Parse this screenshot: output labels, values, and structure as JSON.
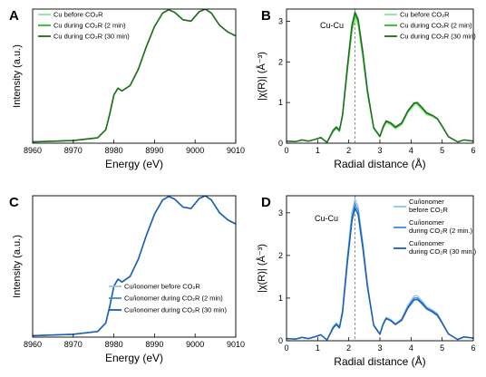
{
  "colors": {
    "light_green": "#8ee68e",
    "mid_green": "#2eb82e",
    "dark_green": "#1e6e1e",
    "light_blue": "#8fc3ec",
    "mid_blue": "#3a8fd8",
    "dark_blue": "#1a5fb4",
    "guide": "#777777"
  },
  "chart_data": [
    {
      "panel": "A",
      "type": "line",
      "xlabel": "Energy (eV)",
      "ylabel": "Intensity (a.u.)",
      "xlim": [
        8960,
        9010
      ],
      "xticks": [
        8960,
        8970,
        8980,
        8990,
        9000,
        9010
      ],
      "ylim": [
        0,
        1
      ],
      "show_yticks": false,
      "legend": {
        "position": "top-left"
      },
      "series": [
        {
          "name": "Cu before CO₂R",
          "color_key": "light_green",
          "width": 1.2,
          "x": [
            8960,
            8970,
            8976,
            8978,
            8979,
            8980,
            8981,
            8982,
            8984,
            8986,
            8988,
            8990,
            8992,
            8993.5,
            8995,
            8997,
            8999,
            9001,
            9002.5,
            9004,
            9006,
            9008,
            9010
          ],
          "y": [
            0.01,
            0.02,
            0.04,
            0.1,
            0.22,
            0.36,
            0.41,
            0.39,
            0.43,
            0.55,
            0.72,
            0.87,
            0.97,
            0.995,
            0.975,
            0.92,
            0.91,
            0.98,
            1.0,
            0.97,
            0.88,
            0.83,
            0.8
          ]
        },
        {
          "name": "Cu during CO₂R (2 min)",
          "color_key": "mid_green",
          "width": 1.4,
          "x": [
            8960,
            8970,
            8976,
            8978,
            8979,
            8980,
            8981,
            8982,
            8984,
            8986,
            8988,
            8990,
            8992,
            8993.5,
            8995,
            8997,
            8999,
            9001,
            9002.5,
            9004,
            9006,
            9008,
            9010
          ],
          "y": [
            0.01,
            0.02,
            0.04,
            0.1,
            0.22,
            0.36,
            0.41,
            0.39,
            0.43,
            0.55,
            0.72,
            0.87,
            0.97,
            0.995,
            0.975,
            0.92,
            0.91,
            0.98,
            1.0,
            0.97,
            0.88,
            0.83,
            0.8
          ]
        },
        {
          "name": "Cu during CO₂R (30 min)",
          "color_key": "dark_green",
          "width": 1.6,
          "x": [
            8960,
            8970,
            8976,
            8978,
            8979,
            8980,
            8981,
            8982,
            8984,
            8986,
            8988,
            8990,
            8992,
            8993.5,
            8995,
            8997,
            8999,
            9001,
            9002.5,
            9004,
            9006,
            9008,
            9010
          ],
          "y": [
            0.01,
            0.02,
            0.04,
            0.1,
            0.22,
            0.36,
            0.41,
            0.39,
            0.43,
            0.55,
            0.72,
            0.87,
            0.97,
            0.995,
            0.975,
            0.92,
            0.91,
            0.98,
            1.0,
            0.97,
            0.88,
            0.83,
            0.8
          ]
        }
      ]
    },
    {
      "panel": "B",
      "type": "line",
      "xlabel": "Radial distance (Å)",
      "ylabel": "|χ(R)| (Å⁻³)",
      "xlim": [
        0,
        6
      ],
      "xticks": [
        0,
        1,
        2,
        3,
        4,
        5,
        6
      ],
      "ylim": [
        0,
        3.3
      ],
      "yticks": [
        0,
        1,
        2,
        3
      ],
      "annotation": "Cu-Cu",
      "guide_x": 2.2,
      "legend": {
        "position": "top-right"
      },
      "series": [
        {
          "name": "Cu before CO₂R",
          "color_key": "light_green",
          "width": 1.2,
          "x": [
            0,
            0.3,
            0.5,
            0.7,
            0.9,
            1.1,
            1.3,
            1.5,
            1.6,
            1.7,
            1.8,
            1.95,
            2.1,
            2.2,
            2.3,
            2.45,
            2.6,
            2.8,
            3.0,
            3.1,
            3.2,
            3.35,
            3.5,
            3.7,
            3.9,
            4.1,
            4.2,
            4.35,
            4.5,
            4.7,
            4.85,
            5.0,
            5.2,
            5.5,
            5.7,
            6.0
          ],
          "y": [
            0.05,
            0.04,
            0.08,
            0.05,
            0.09,
            0.14,
            0.02,
            0.28,
            0.35,
            0.28,
            0.65,
            1.7,
            2.7,
            3.05,
            2.9,
            2.1,
            1.2,
            0.35,
            0.15,
            0.35,
            0.5,
            0.45,
            0.35,
            0.45,
            0.75,
            0.93,
            0.94,
            0.82,
            0.7,
            0.65,
            0.58,
            0.4,
            0.15,
            0.03,
            0.08,
            0.05
          ]
        },
        {
          "name": "Cu during CO₂R (2 min)",
          "color_key": "mid_green",
          "width": 1.3,
          "x": [
            0,
            0.3,
            0.5,
            0.7,
            0.9,
            1.1,
            1.3,
            1.5,
            1.6,
            1.7,
            1.8,
            1.95,
            2.1,
            2.2,
            2.3,
            2.45,
            2.6,
            2.8,
            3.0,
            3.1,
            3.2,
            3.35,
            3.5,
            3.7,
            3.9,
            4.1,
            4.2,
            4.35,
            4.5,
            4.7,
            4.85,
            5.0,
            5.2,
            5.5,
            5.7,
            6.0
          ],
          "y": [
            0.05,
            0.04,
            0.08,
            0.05,
            0.09,
            0.14,
            0.02,
            0.3,
            0.38,
            0.3,
            0.68,
            1.78,
            2.82,
            3.15,
            2.98,
            2.18,
            1.25,
            0.37,
            0.16,
            0.38,
            0.53,
            0.48,
            0.38,
            0.48,
            0.78,
            0.97,
            0.98,
            0.86,
            0.73,
            0.67,
            0.6,
            0.42,
            0.16,
            0.03,
            0.08,
            0.05
          ]
        },
        {
          "name": "Cu during CO₂R (30 min)",
          "color_key": "dark_green",
          "width": 1.5,
          "x": [
            0,
            0.3,
            0.5,
            0.7,
            0.9,
            1.1,
            1.3,
            1.5,
            1.6,
            1.7,
            1.8,
            1.95,
            2.1,
            2.2,
            2.3,
            2.45,
            2.6,
            2.8,
            3.0,
            3.1,
            3.2,
            3.35,
            3.5,
            3.7,
            3.9,
            4.1,
            4.2,
            4.35,
            4.5,
            4.7,
            4.85,
            5.0,
            5.2,
            5.5,
            5.7,
            6.0
          ],
          "y": [
            0.05,
            0.04,
            0.08,
            0.05,
            0.09,
            0.14,
            0.02,
            0.32,
            0.4,
            0.32,
            0.7,
            1.85,
            2.9,
            3.22,
            3.05,
            2.25,
            1.3,
            0.38,
            0.17,
            0.4,
            0.55,
            0.5,
            0.4,
            0.5,
            0.8,
            0.99,
            1.0,
            0.88,
            0.75,
            0.68,
            0.6,
            0.42,
            0.16,
            0.03,
            0.08,
            0.05
          ]
        }
      ]
    },
    {
      "panel": "C",
      "type": "line",
      "xlabel": "Energy (eV)",
      "ylabel": "Intensity (a.u.)",
      "xlim": [
        8960,
        9010
      ],
      "xticks": [
        8960,
        8970,
        8980,
        8990,
        9000,
        9010
      ],
      "ylim": [
        0,
        1
      ],
      "show_yticks": false,
      "legend": {
        "position": "bottom-right"
      },
      "series": [
        {
          "name": "Cu/ionomer before CO₂R",
          "color_key": "light_blue",
          "width": 1.2,
          "x": [
            8960,
            8970,
            8976,
            8978,
            8979,
            8980,
            8981,
            8982,
            8984,
            8986,
            8988,
            8990,
            8992,
            8993.5,
            8995,
            8997,
            8999,
            9001,
            9002.5,
            9004,
            9006,
            9008,
            9010
          ],
          "y": [
            0.01,
            0.02,
            0.04,
            0.1,
            0.22,
            0.36,
            0.41,
            0.39,
            0.43,
            0.55,
            0.72,
            0.87,
            0.97,
            0.995,
            0.975,
            0.92,
            0.91,
            0.98,
            1.0,
            0.97,
            0.88,
            0.83,
            0.8
          ]
        },
        {
          "name": "Cu/ionomer during CO₂R (2 min)",
          "color_key": "mid_blue",
          "width": 1.4,
          "x": [
            8960,
            8970,
            8976,
            8978,
            8979,
            8980,
            8981,
            8982,
            8984,
            8986,
            8988,
            8990,
            8992,
            8993.5,
            8995,
            8997,
            8999,
            9001,
            9002.5,
            9004,
            9006,
            9008,
            9010
          ],
          "y": [
            0.01,
            0.02,
            0.04,
            0.1,
            0.22,
            0.36,
            0.41,
            0.39,
            0.43,
            0.55,
            0.72,
            0.87,
            0.97,
            0.995,
            0.975,
            0.92,
            0.91,
            0.98,
            1.0,
            0.97,
            0.88,
            0.83,
            0.8
          ]
        },
        {
          "name": "Cu/ionomer during CO₂R (30 min)",
          "color_key": "dark_blue",
          "width": 1.6,
          "x": [
            8960,
            8970,
            8976,
            8978,
            8979,
            8980,
            8981,
            8982,
            8984,
            8986,
            8988,
            8990,
            8992,
            8993.5,
            8995,
            8997,
            8999,
            9001,
            9002.5,
            9004,
            9006,
            9008,
            9010
          ],
          "y": [
            0.01,
            0.02,
            0.04,
            0.1,
            0.22,
            0.36,
            0.41,
            0.39,
            0.43,
            0.55,
            0.72,
            0.87,
            0.97,
            0.995,
            0.975,
            0.92,
            0.91,
            0.98,
            1.0,
            0.97,
            0.88,
            0.83,
            0.8
          ]
        }
      ]
    },
    {
      "panel": "D",
      "type": "line",
      "xlabel": "Radial distance (Å)",
      "ylabel": "|χ(R)| (Å⁻³)",
      "xlim": [
        0,
        6
      ],
      "xticks": [
        0,
        1,
        2,
        3,
        4,
        5,
        6
      ],
      "ylim": [
        0,
        3.4
      ],
      "yticks": [
        0,
        1,
        2,
        3
      ],
      "annotation": "Cu-Cu",
      "guide_x": 2.2,
      "legend": {
        "position": "top-right"
      },
      "series": [
        {
          "name": "Cu/ionomer before CO₂R",
          "color_key": "light_blue",
          "width": 1.2,
          "x": [
            0,
            0.3,
            0.5,
            0.7,
            0.9,
            1.1,
            1.3,
            1.5,
            1.6,
            1.7,
            1.8,
            1.95,
            2.1,
            2.2,
            2.3,
            2.45,
            2.6,
            2.8,
            3.0,
            3.1,
            3.2,
            3.35,
            3.5,
            3.7,
            3.9,
            4.1,
            4.2,
            4.35,
            4.5,
            4.7,
            4.85,
            5.0,
            5.2,
            5.5,
            5.7,
            6.0
          ],
          "y": [
            0.05,
            0.04,
            0.08,
            0.05,
            0.09,
            0.14,
            0.02,
            0.34,
            0.42,
            0.34,
            0.74,
            1.95,
            3.0,
            3.32,
            3.15,
            2.32,
            1.34,
            0.38,
            0.17,
            0.4,
            0.55,
            0.5,
            0.4,
            0.52,
            0.84,
            1.05,
            1.06,
            0.94,
            0.8,
            0.72,
            0.64,
            0.44,
            0.17,
            0.03,
            0.1,
            0.06
          ]
        },
        {
          "name": "Cu/ionomer during CO₂R (2 min.)",
          "color_key": "mid_blue",
          "width": 1.3,
          "x": [
            0,
            0.3,
            0.5,
            0.7,
            0.9,
            1.1,
            1.3,
            1.5,
            1.6,
            1.7,
            1.8,
            1.95,
            2.1,
            2.2,
            2.3,
            2.45,
            2.6,
            2.8,
            3.0,
            3.1,
            3.2,
            3.35,
            3.5,
            3.7,
            3.9,
            4.1,
            4.2,
            4.35,
            4.5,
            4.7,
            4.85,
            5.0,
            5.2,
            5.5,
            5.7,
            6.0
          ],
          "y": [
            0.05,
            0.04,
            0.08,
            0.05,
            0.09,
            0.14,
            0.02,
            0.32,
            0.4,
            0.32,
            0.7,
            1.88,
            2.9,
            3.22,
            3.05,
            2.25,
            1.3,
            0.37,
            0.16,
            0.39,
            0.53,
            0.48,
            0.39,
            0.5,
            0.8,
            1.0,
            1.01,
            0.9,
            0.77,
            0.69,
            0.61,
            0.42,
            0.16,
            0.03,
            0.09,
            0.06
          ]
        },
        {
          "name": "Cu/ionomer during CO₂R (30 min.)",
          "color_key": "dark_blue",
          "width": 1.5,
          "x": [
            0,
            0.3,
            0.5,
            0.7,
            0.9,
            1.1,
            1.3,
            1.5,
            1.6,
            1.7,
            1.8,
            1.95,
            2.1,
            2.2,
            2.3,
            2.45,
            2.6,
            2.8,
            3.0,
            3.1,
            3.2,
            3.35,
            3.5,
            3.7,
            3.9,
            4.1,
            4.2,
            4.35,
            4.5,
            4.7,
            4.85,
            5.0,
            5.2,
            5.5,
            5.7,
            6.0
          ],
          "y": [
            0.05,
            0.04,
            0.08,
            0.05,
            0.09,
            0.14,
            0.02,
            0.3,
            0.38,
            0.3,
            0.66,
            1.8,
            2.8,
            3.12,
            2.96,
            2.18,
            1.26,
            0.36,
            0.15,
            0.38,
            0.52,
            0.47,
            0.38,
            0.48,
            0.77,
            0.96,
            0.97,
            0.87,
            0.75,
            0.67,
            0.59,
            0.41,
            0.16,
            0.03,
            0.09,
            0.06
          ]
        }
      ]
    }
  ]
}
